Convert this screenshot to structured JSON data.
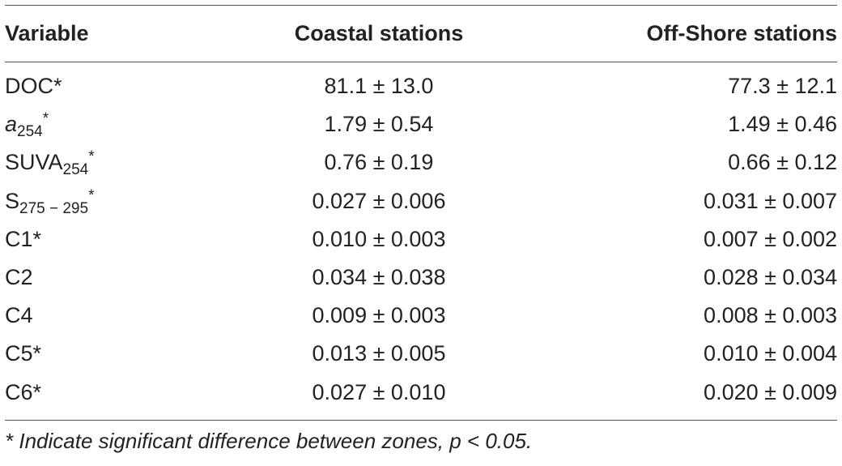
{
  "table": {
    "headers": {
      "variable": "Variable",
      "coastal": "Coastal stations",
      "offshore": "Off-Shore stations"
    },
    "rows": [
      {
        "var_main": "DOC",
        "var_sub": "",
        "var_mark": "*",
        "coastal": "81.1 ± 13.0",
        "offshore": "77.3 ± 12.1"
      },
      {
        "var_main": "a",
        "var_sub": "254",
        "var_mark": "*",
        "coastal": "1.79 ± 0.54",
        "offshore": "1.49 ± 0.46"
      },
      {
        "var_main": "SUVA",
        "var_sub": "254",
        "var_mark": "*",
        "coastal": "0.76 ± 0.19",
        "offshore": "0.66 ± 0.12"
      },
      {
        "var_main": "S",
        "var_sub": "275 − 295",
        "var_mark": "*",
        "coastal": "0.027 ± 0.006",
        "offshore": "0.031 ± 0.007"
      },
      {
        "var_main": "C1",
        "var_sub": "",
        "var_mark": "*",
        "coastal": "0.010 ± 0.003",
        "offshore": "0.007 ± 0.002"
      },
      {
        "var_main": "C2",
        "var_sub": "",
        "var_mark": "",
        "coastal": "0.034 ± 0.038",
        "offshore": "0.028 ± 0.034"
      },
      {
        "var_main": "C4",
        "var_sub": "",
        "var_mark": "",
        "coastal": "0.009 ± 0.003",
        "offshore": "0.008 ± 0.003"
      },
      {
        "var_main": "C5",
        "var_sub": "",
        "var_mark": "*",
        "coastal": "0.013 ± 0.005",
        "offshore": "0.010 ± 0.004"
      },
      {
        "var_main": "C6",
        "var_sub": "",
        "var_mark": "*",
        "coastal": "0.027 ± 0.010",
        "offshore": "0.020 ± 0.009"
      }
    ],
    "footnote": "* Indicate significant difference between zones, p < 0.05."
  }
}
